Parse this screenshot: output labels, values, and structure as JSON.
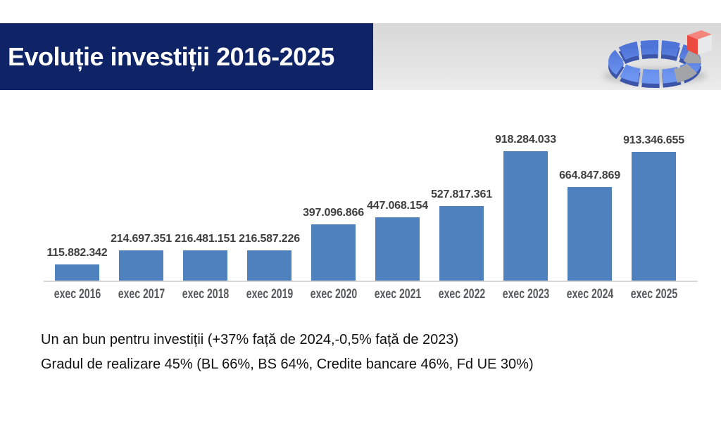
{
  "header": {
    "title": "Evoluție investiții 2016-2025"
  },
  "graphic": {
    "name": "3d-segmented-donut-with-red-cube"
  },
  "chart_data": {
    "type": "bar",
    "title": "Evoluție investiții 2016-2025",
    "categories": [
      "exec 2016",
      "exec 2017",
      "exec 2018",
      "exec 2019",
      "exec 2020",
      "exec 2021",
      "exec 2022",
      "exec 2023",
      "exec 2024",
      "exec 2025"
    ],
    "values": [
      115882342,
      214697351,
      216481151,
      216587226,
      397096866,
      447068154,
      527817361,
      918284033,
      664847869,
      913346655
    ],
    "value_labels": [
      "115.882.342",
      "214.697.351",
      "216.481.151",
      "216.587.226",
      "397.096.866",
      "447.068.154",
      "527.817.361",
      "918.284.033",
      "664.847.869",
      "913.346.655"
    ],
    "xlabel": "",
    "ylabel": "",
    "ylim": [
      0,
      950000000
    ],
    "grid": false,
    "legend": false,
    "bar_color": "#4e81bd",
    "value_label_color": "#3f3f3f",
    "category_label_color": "#58595b",
    "axis_line_color": "#d9d9d9"
  },
  "notes": {
    "line1": "Un an bun pentru investiții (+37% față de 2024,-0,5% față de 2023)",
    "line2": "Gradul de realizare 45% (BL 66%, BS 64%, Credite bancare 46%, Fd UE 30%)"
  },
  "colors": {
    "header_bg": "#0f2367",
    "header_text": "#ffffff",
    "strip_bg": "#dcdcdc",
    "accent_blue": "#5b82e8",
    "accent_red": "#ea4a3f"
  }
}
